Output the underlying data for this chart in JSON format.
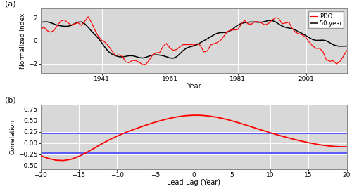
{
  "panel_a_label": "(a)",
  "panel_b_label": "(b)",
  "years_start": 1923,
  "years_end": 2013,
  "ylabel_a": "Normalized Index",
  "xlabel_a": "Year",
  "xticks_a": [
    1941,
    1961,
    1981,
    2001
  ],
  "yticks_a": [
    -2,
    0,
    2
  ],
  "ylim_a": [
    -2.8,
    2.8
  ],
  "xlim_a": [
    1923,
    2013
  ],
  "ylabel_b": "Correlation",
  "xlabel_b": "Lead-Lag (Year)",
  "xticks_b": [
    -20,
    -15,
    -10,
    -5,
    0,
    5,
    10,
    15,
    20
  ],
  "yticks_b": [
    -0.5,
    -0.25,
    0,
    0.25,
    0.5,
    0.75
  ],
  "ylim_b": [
    -0.58,
    0.85
  ],
  "xlim_b": [
    -20,
    20
  ],
  "confidence_level": 0.22,
  "confidence_color": "#4444ff",
  "line_color_pdo": "#ff0000",
  "line_color_50yr": "#000000",
  "legend_pdo": "PDO",
  "legend_50yr": "50 year",
  "bg_color": "#d8d8d8",
  "grid_color": "#ffffff",
  "axes_border_color": "#888888"
}
